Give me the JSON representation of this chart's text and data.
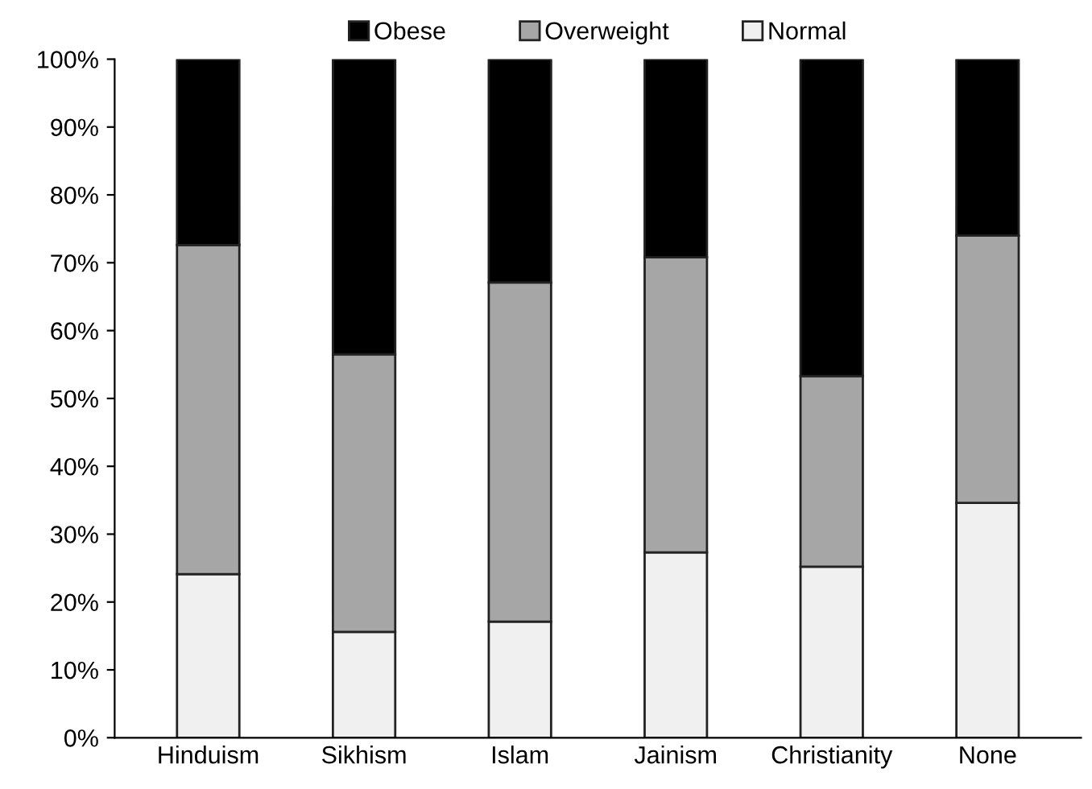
{
  "chart_data": {
    "type": "bar",
    "stacked": true,
    "categories": [
      "Hinduism",
      "Sikhism",
      "Islam",
      "Jainism",
      "Christianity",
      "None"
    ],
    "series": [
      {
        "name": "Normal",
        "color": "#f0f0f0",
        "values": [
          24.1,
          15.6,
          17.1,
          27.3,
          25.2,
          34.6
        ]
      },
      {
        "name": "Overweight",
        "color": "#a6a6a6",
        "values": [
          48.5,
          40.9,
          50.0,
          43.5,
          28.1,
          39.4
        ]
      },
      {
        "name": "Obese",
        "color": "#000000",
        "values": [
          27.4,
          43.5,
          32.9,
          29.2,
          46.7,
          26.0
        ]
      }
    ],
    "ylim": [
      0,
      100
    ],
    "yticks": [
      {
        "value": 0,
        "label": "0%"
      },
      {
        "value": 10,
        "label": "10%"
      },
      {
        "value": 20,
        "label": "20%"
      },
      {
        "value": 30,
        "label": "30%"
      },
      {
        "value": 40,
        "label": "40%"
      },
      {
        "value": 50,
        "label": "50%"
      },
      {
        "value": 60,
        "label": "60%"
      },
      {
        "value": 70,
        "label": "70%"
      },
      {
        "value": 80,
        "label": "80%"
      },
      {
        "value": 90,
        "label": "90%"
      },
      {
        "value": 100,
        "label": "100%"
      }
    ],
    "grid": false,
    "legend": "top"
  }
}
